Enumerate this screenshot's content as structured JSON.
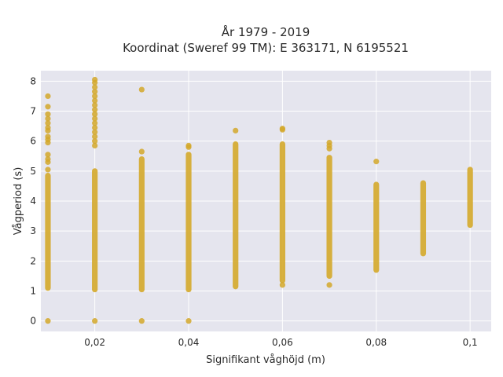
{
  "chart_data": {
    "type": "scatter",
    "title": [
      "År 1979 - 2019",
      "Koordinat (Sweref 99 TM): E 363171, N 6195521"
    ],
    "xlabel": "Signifikant våghöjd (m)",
    "ylabel": "Vågperiod (s)",
    "xlim": [
      0.0085,
      0.1045
    ],
    "ylim": [
      -0.35,
      8.35
    ],
    "xticks": [
      0.02,
      0.04,
      0.06,
      0.08,
      0.1
    ],
    "xtick_labels": [
      "0,02",
      "0,04",
      "0,06",
      "0,08",
      "0,1"
    ],
    "yticks": [
      0,
      1,
      2,
      3,
      4,
      5,
      6,
      7,
      8
    ],
    "ytick_labels": [
      "0",
      "1",
      "2",
      "3",
      "4",
      "5",
      "6",
      "7",
      "8"
    ],
    "grid": true,
    "marker_color": "#d4a82a",
    "background_color": "#e5e5ee",
    "series": [
      {
        "ranges": [
          {
            "x": 0.01,
            "y_from": 1.1,
            "y_to": 4.85
          },
          {
            "x": 0.02,
            "y_from": 1.05,
            "y_to": 5.0
          },
          {
            "x": 0.03,
            "y_from": 1.05,
            "y_to": 5.4
          },
          {
            "x": 0.04,
            "y_from": 1.05,
            "y_to": 5.55
          },
          {
            "x": 0.05,
            "y_from": 1.15,
            "y_to": 5.9
          },
          {
            "x": 0.06,
            "y_from": 1.35,
            "y_to": 5.9
          },
          {
            "x": 0.07,
            "y_from": 1.5,
            "y_to": 5.45
          },
          {
            "x": 0.08,
            "y_from": 1.7,
            "y_to": 4.55
          },
          {
            "x": 0.09,
            "y_from": 2.25,
            "y_to": 4.6
          },
          {
            "x": 0.1,
            "y_from": 3.2,
            "y_to": 5.05
          }
        ],
        "points": [
          {
            "x": 0.01,
            "y": 0.0
          },
          {
            "x": 0.01,
            "y": 5.05
          },
          {
            "x": 0.01,
            "y": 5.3
          },
          {
            "x": 0.01,
            "y": 5.4
          },
          {
            "x": 0.01,
            "y": 5.55
          },
          {
            "x": 0.01,
            "y": 5.95
          },
          {
            "x": 0.01,
            "y": 6.05
          },
          {
            "x": 0.01,
            "y": 6.15
          },
          {
            "x": 0.01,
            "y": 6.35
          },
          {
            "x": 0.01,
            "y": 6.45
          },
          {
            "x": 0.01,
            "y": 6.6
          },
          {
            "x": 0.01,
            "y": 6.75
          },
          {
            "x": 0.01,
            "y": 6.9
          },
          {
            "x": 0.01,
            "y": 7.15
          },
          {
            "x": 0.01,
            "y": 7.5
          },
          {
            "x": 0.02,
            "y": 0.0
          },
          {
            "x": 0.02,
            "y": 5.85
          },
          {
            "x": 0.02,
            "y": 6.0
          },
          {
            "x": 0.02,
            "y": 6.15
          },
          {
            "x": 0.02,
            "y": 6.3
          },
          {
            "x": 0.02,
            "y": 6.45
          },
          {
            "x": 0.02,
            "y": 6.6
          },
          {
            "x": 0.02,
            "y": 6.75
          },
          {
            "x": 0.02,
            "y": 6.9
          },
          {
            "x": 0.02,
            "y": 7.05
          },
          {
            "x": 0.02,
            "y": 7.2
          },
          {
            "x": 0.02,
            "y": 7.35
          },
          {
            "x": 0.02,
            "y": 7.5
          },
          {
            "x": 0.02,
            "y": 7.65
          },
          {
            "x": 0.02,
            "y": 7.8
          },
          {
            "x": 0.02,
            "y": 7.95
          },
          {
            "x": 0.02,
            "y": 8.05
          },
          {
            "x": 0.03,
            "y": 0.0
          },
          {
            "x": 0.03,
            "y": 5.65
          },
          {
            "x": 0.03,
            "y": 7.72
          },
          {
            "x": 0.04,
            "y": 0.0
          },
          {
            "x": 0.04,
            "y": 5.8
          },
          {
            "x": 0.04,
            "y": 5.85
          },
          {
            "x": 0.05,
            "y": 6.35
          },
          {
            "x": 0.06,
            "y": 1.2
          },
          {
            "x": 0.06,
            "y": 6.38
          },
          {
            "x": 0.06,
            "y": 6.42
          },
          {
            "x": 0.07,
            "y": 1.2
          },
          {
            "x": 0.07,
            "y": 5.75
          },
          {
            "x": 0.07,
            "y": 5.85
          },
          {
            "x": 0.07,
            "y": 5.95
          },
          {
            "x": 0.08,
            "y": 5.32
          }
        ]
      }
    ]
  }
}
